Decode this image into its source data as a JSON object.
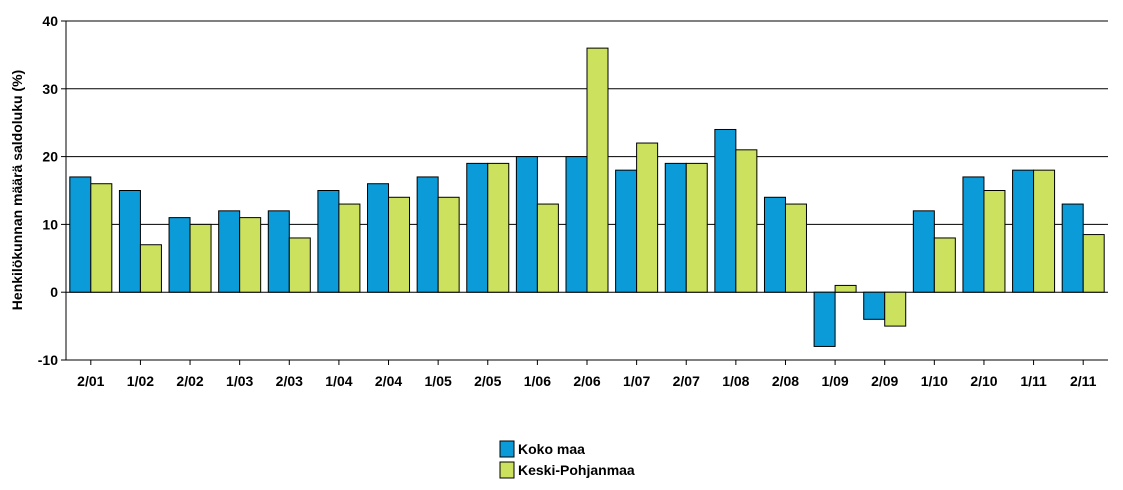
{
  "chart_data": {
    "type": "bar",
    "ylabel": "Henkilökunnan määrä saldoluku (%)",
    "xlabel": "",
    "ylim": [
      -10,
      40
    ],
    "yticks": [
      -10,
      0,
      10,
      20,
      30,
      40
    ],
    "grid": true,
    "legend_position": "bottom-center",
    "categories": [
      "2/01",
      "1/02",
      "2/02",
      "1/03",
      "2/03",
      "1/04",
      "2/04",
      "1/05",
      "2/05",
      "1/06",
      "2/06",
      "1/07",
      "2/07",
      "1/08",
      "2/08",
      "1/09",
      "2/09",
      "1/10",
      "2/10",
      "1/11",
      "2/11"
    ],
    "series": [
      {
        "name": "Koko maa",
        "color": "#0B9BD8",
        "values": [
          17,
          15,
          11,
          12,
          12,
          15,
          16,
          17,
          19,
          20,
          20,
          18,
          19,
          24,
          14,
          -8,
          -4,
          12,
          17,
          18,
          13
        ]
      },
      {
        "name": "Keski-Pohjanmaa",
        "color": "#CCE25F",
        "values": [
          16,
          7,
          10,
          11,
          8,
          13,
          14,
          14,
          19,
          13,
          36,
          22,
          19,
          21,
          13,
          1,
          -5,
          8,
          15,
          18,
          8.5
        ]
      }
    ]
  }
}
